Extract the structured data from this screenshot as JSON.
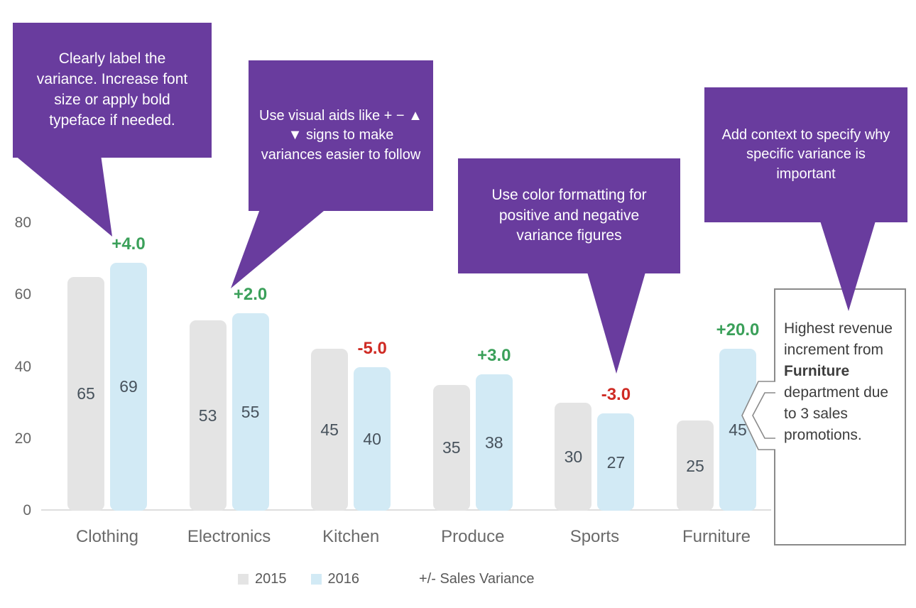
{
  "chart_data": {
    "type": "bar",
    "title": "",
    "categories": [
      "Clothing",
      "Electronics",
      "Kitchen",
      "Produce",
      "Sports",
      "Furniture"
    ],
    "series": [
      {
        "name": "2015",
        "values": [
          65,
          53,
          45,
          35,
          30,
          25
        ]
      },
      {
        "name": "2016",
        "values": [
          69,
          55,
          40,
          38,
          27,
          45
        ]
      }
    ],
    "variances": [
      {
        "category": "Clothing",
        "label": "+4.0",
        "direction": "positive"
      },
      {
        "category": "Electronics",
        "label": "+2.0",
        "direction": "positive"
      },
      {
        "category": "Kitchen",
        "label": "-5.0",
        "direction": "negative"
      },
      {
        "category": "Produce",
        "label": "+3.0",
        "direction": "positive"
      },
      {
        "category": "Sports",
        "label": "-3.0",
        "direction": "negative"
      },
      {
        "category": "Furniture",
        "label": "+20.0",
        "direction": "positive"
      }
    ],
    "ylim": [
      0,
      80
    ],
    "yticks": [
      "0",
      "20",
      "40",
      "60",
      "80"
    ],
    "grid": false,
    "legend_position": "bottom",
    "legend": {
      "series_labels": [
        "2015",
        "2016"
      ],
      "note": "+/- Sales Variance"
    }
  },
  "colors": {
    "purple": "#693c9e",
    "bar_2015": "#e4e4e4",
    "bar_2016": "#d2eaf5",
    "positive": "#3ba05a",
    "negative": "#cf2b24",
    "value_label": "#47525c"
  },
  "callouts": [
    {
      "text": "Clearly label the variance. Increase font size or apply bold typeface if needed."
    },
    {
      "text": "Use visual aids like + − ▲ ▼ signs to make variances easier to follow"
    },
    {
      "text": "Use color formatting for positive and negative variance figures"
    },
    {
      "text": "Add context to specify why specific variance is important"
    }
  ],
  "note_box": {
    "text_before": "Highest revenue increment from ",
    "bold_text": "Furniture",
    "text_after": " department due to 3 sales promotions."
  }
}
